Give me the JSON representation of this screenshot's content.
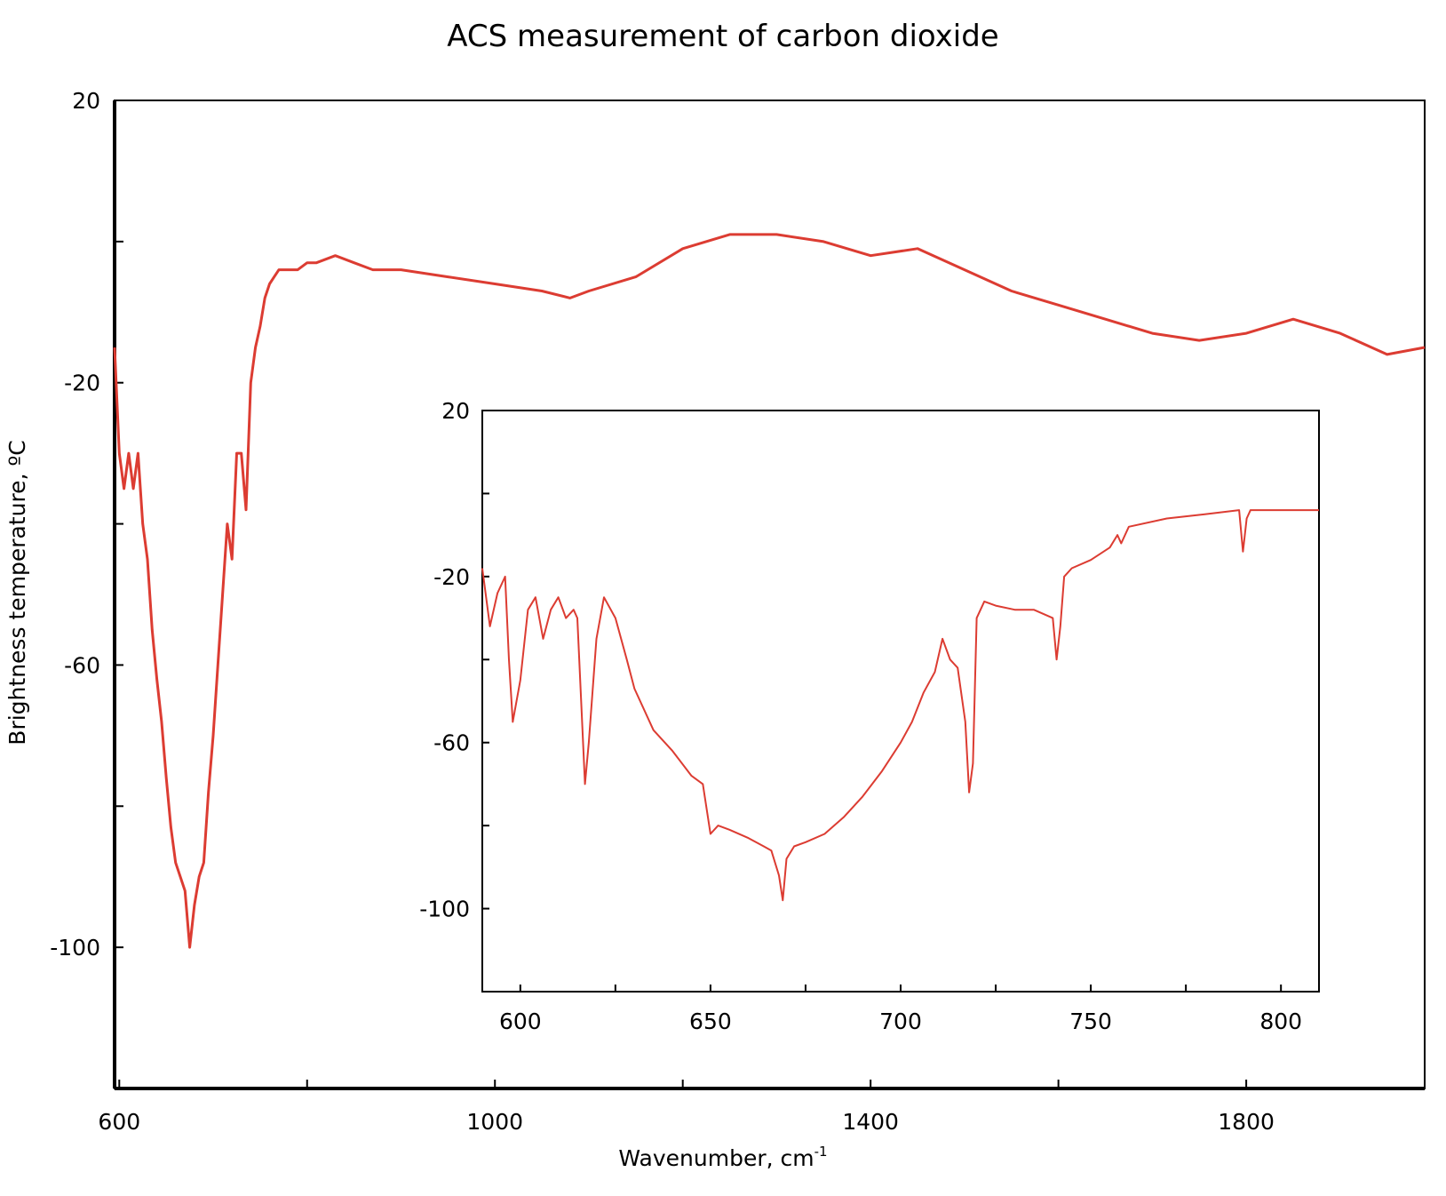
{
  "chart_data": [
    {
      "type": "line",
      "title": "ACS measurement of carbon dioxide",
      "xlabel": "Wavenumber, cm",
      "xlabel_sup": "-1",
      "ylabel": "Brightness temperature, ºC",
      "xlim": [
        595,
        1990
      ],
      "ylim": [
        -120,
        20
      ],
      "x_ticks": [
        600,
        800,
        1000,
        1200,
        1400,
        1600,
        1800
      ],
      "x_tick_labels": [
        "600",
        "",
        "1000",
        "",
        "1400",
        "",
        "1800"
      ],
      "y_ticks": [
        20,
        0,
        -20,
        -40,
        -60,
        -80,
        -100
      ],
      "y_tick_labels": [
        "20",
        "",
        "-20",
        "",
        "-60",
        "",
        "-100"
      ],
      "grid": false,
      "series": [
        {
          "color": "#dc3c32",
          "x": [
            595,
            600,
            605,
            610,
            615,
            620,
            625,
            630,
            635,
            640,
            645,
            650,
            655,
            660,
            665,
            670,
            675,
            680,
            685,
            690,
            695,
            700,
            705,
            710,
            715,
            720,
            725,
            730,
            735,
            740,
            745,
            750,
            755,
            760,
            765,
            770,
            780,
            790,
            800,
            810,
            830,
            850,
            870,
            900,
            950,
            1000,
            1050,
            1080,
            1100,
            1150,
            1200,
            1250,
            1300,
            1350,
            1400,
            1450,
            1500,
            1550,
            1600,
            1650,
            1700,
            1750,
            1800,
            1850,
            1900,
            1950,
            1990
          ],
          "y": [
            -15,
            -30,
            -35,
            -30,
            -35,
            -30,
            -40,
            -45,
            -55,
            -62,
            -68,
            -76,
            -83,
            -88,
            -90,
            -92,
            -100,
            -94,
            -90,
            -88,
            -78,
            -70,
            -60,
            -50,
            -40,
            -45,
            -30,
            -30,
            -38,
            -20,
            -15,
            -12,
            -8,
            -6,
            -5,
            -4,
            -4,
            -4,
            -3,
            -3,
            -2,
            -3,
            -4,
            -4,
            -5,
            -6,
            -7,
            -8,
            -7,
            -5,
            -1,
            1,
            1,
            0,
            -2,
            -1,
            -4,
            -7,
            -9,
            -11,
            -13,
            -14,
            -13,
            -11,
            -13,
            -16,
            -15
          ]
        }
      ]
    },
    {
      "type": "line",
      "title": "",
      "xlabel": "",
      "ylabel": "",
      "xlim": [
        590,
        810
      ],
      "ylim": [
        -120,
        20
      ],
      "x_ticks": [
        600,
        625,
        650,
        675,
        700,
        725,
        750,
        775,
        800
      ],
      "x_tick_labels": [
        "600",
        "",
        "650",
        "",
        "700",
        "",
        "750",
        "",
        "800"
      ],
      "y_ticks": [
        20,
        0,
        -20,
        -40,
        -60,
        -80,
        -100
      ],
      "y_tick_labels": [
        "20",
        "",
        "-20",
        "",
        "-60",
        "",
        "-100"
      ],
      "grid": false,
      "series": [
        {
          "color": "#dc3c32",
          "x": [
            590,
            592,
            594,
            596,
            597,
            598,
            600,
            602,
            604,
            606,
            608,
            610,
            612,
            614,
            615,
            616,
            617,
            618,
            620,
            622,
            625,
            628,
            630,
            635,
            640,
            645,
            648,
            650,
            652,
            655,
            660,
            664,
            666,
            668,
            669,
            670,
            672,
            675,
            680,
            685,
            690,
            695,
            700,
            703,
            706,
            709,
            711,
            713,
            715,
            717,
            718,
            719,
            720,
            722,
            725,
            730,
            735,
            740,
            741,
            742,
            743,
            745,
            750,
            755,
            757,
            758,
            760,
            770,
            780,
            789,
            790,
            791,
            792,
            795,
            800,
            810
          ],
          "y": [
            -18,
            -32,
            -24,
            -20,
            -40,
            -55,
            -45,
            -28,
            -25,
            -35,
            -28,
            -25,
            -30,
            -28,
            -30,
            -50,
            -70,
            -60,
            -35,
            -25,
            -30,
            -40,
            -47,
            -57,
            -62,
            -68,
            -70,
            -82,
            -80,
            -81,
            -83,
            -85,
            -86,
            -92,
            -98,
            -88,
            -85,
            -84,
            -82,
            -78,
            -73,
            -67,
            -60,
            -55,
            -48,
            -43,
            -35,
            -40,
            -42,
            -55,
            -72,
            -65,
            -30,
            -26,
            -27,
            -28,
            -28,
            -30,
            -40,
            -32,
            -20,
            -18,
            -16,
            -13,
            -10,
            -12,
            -8,
            -6,
            -5,
            -4,
            -14,
            -6,
            -4,
            -4,
            -4,
            -4
          ]
        }
      ]
    }
  ]
}
